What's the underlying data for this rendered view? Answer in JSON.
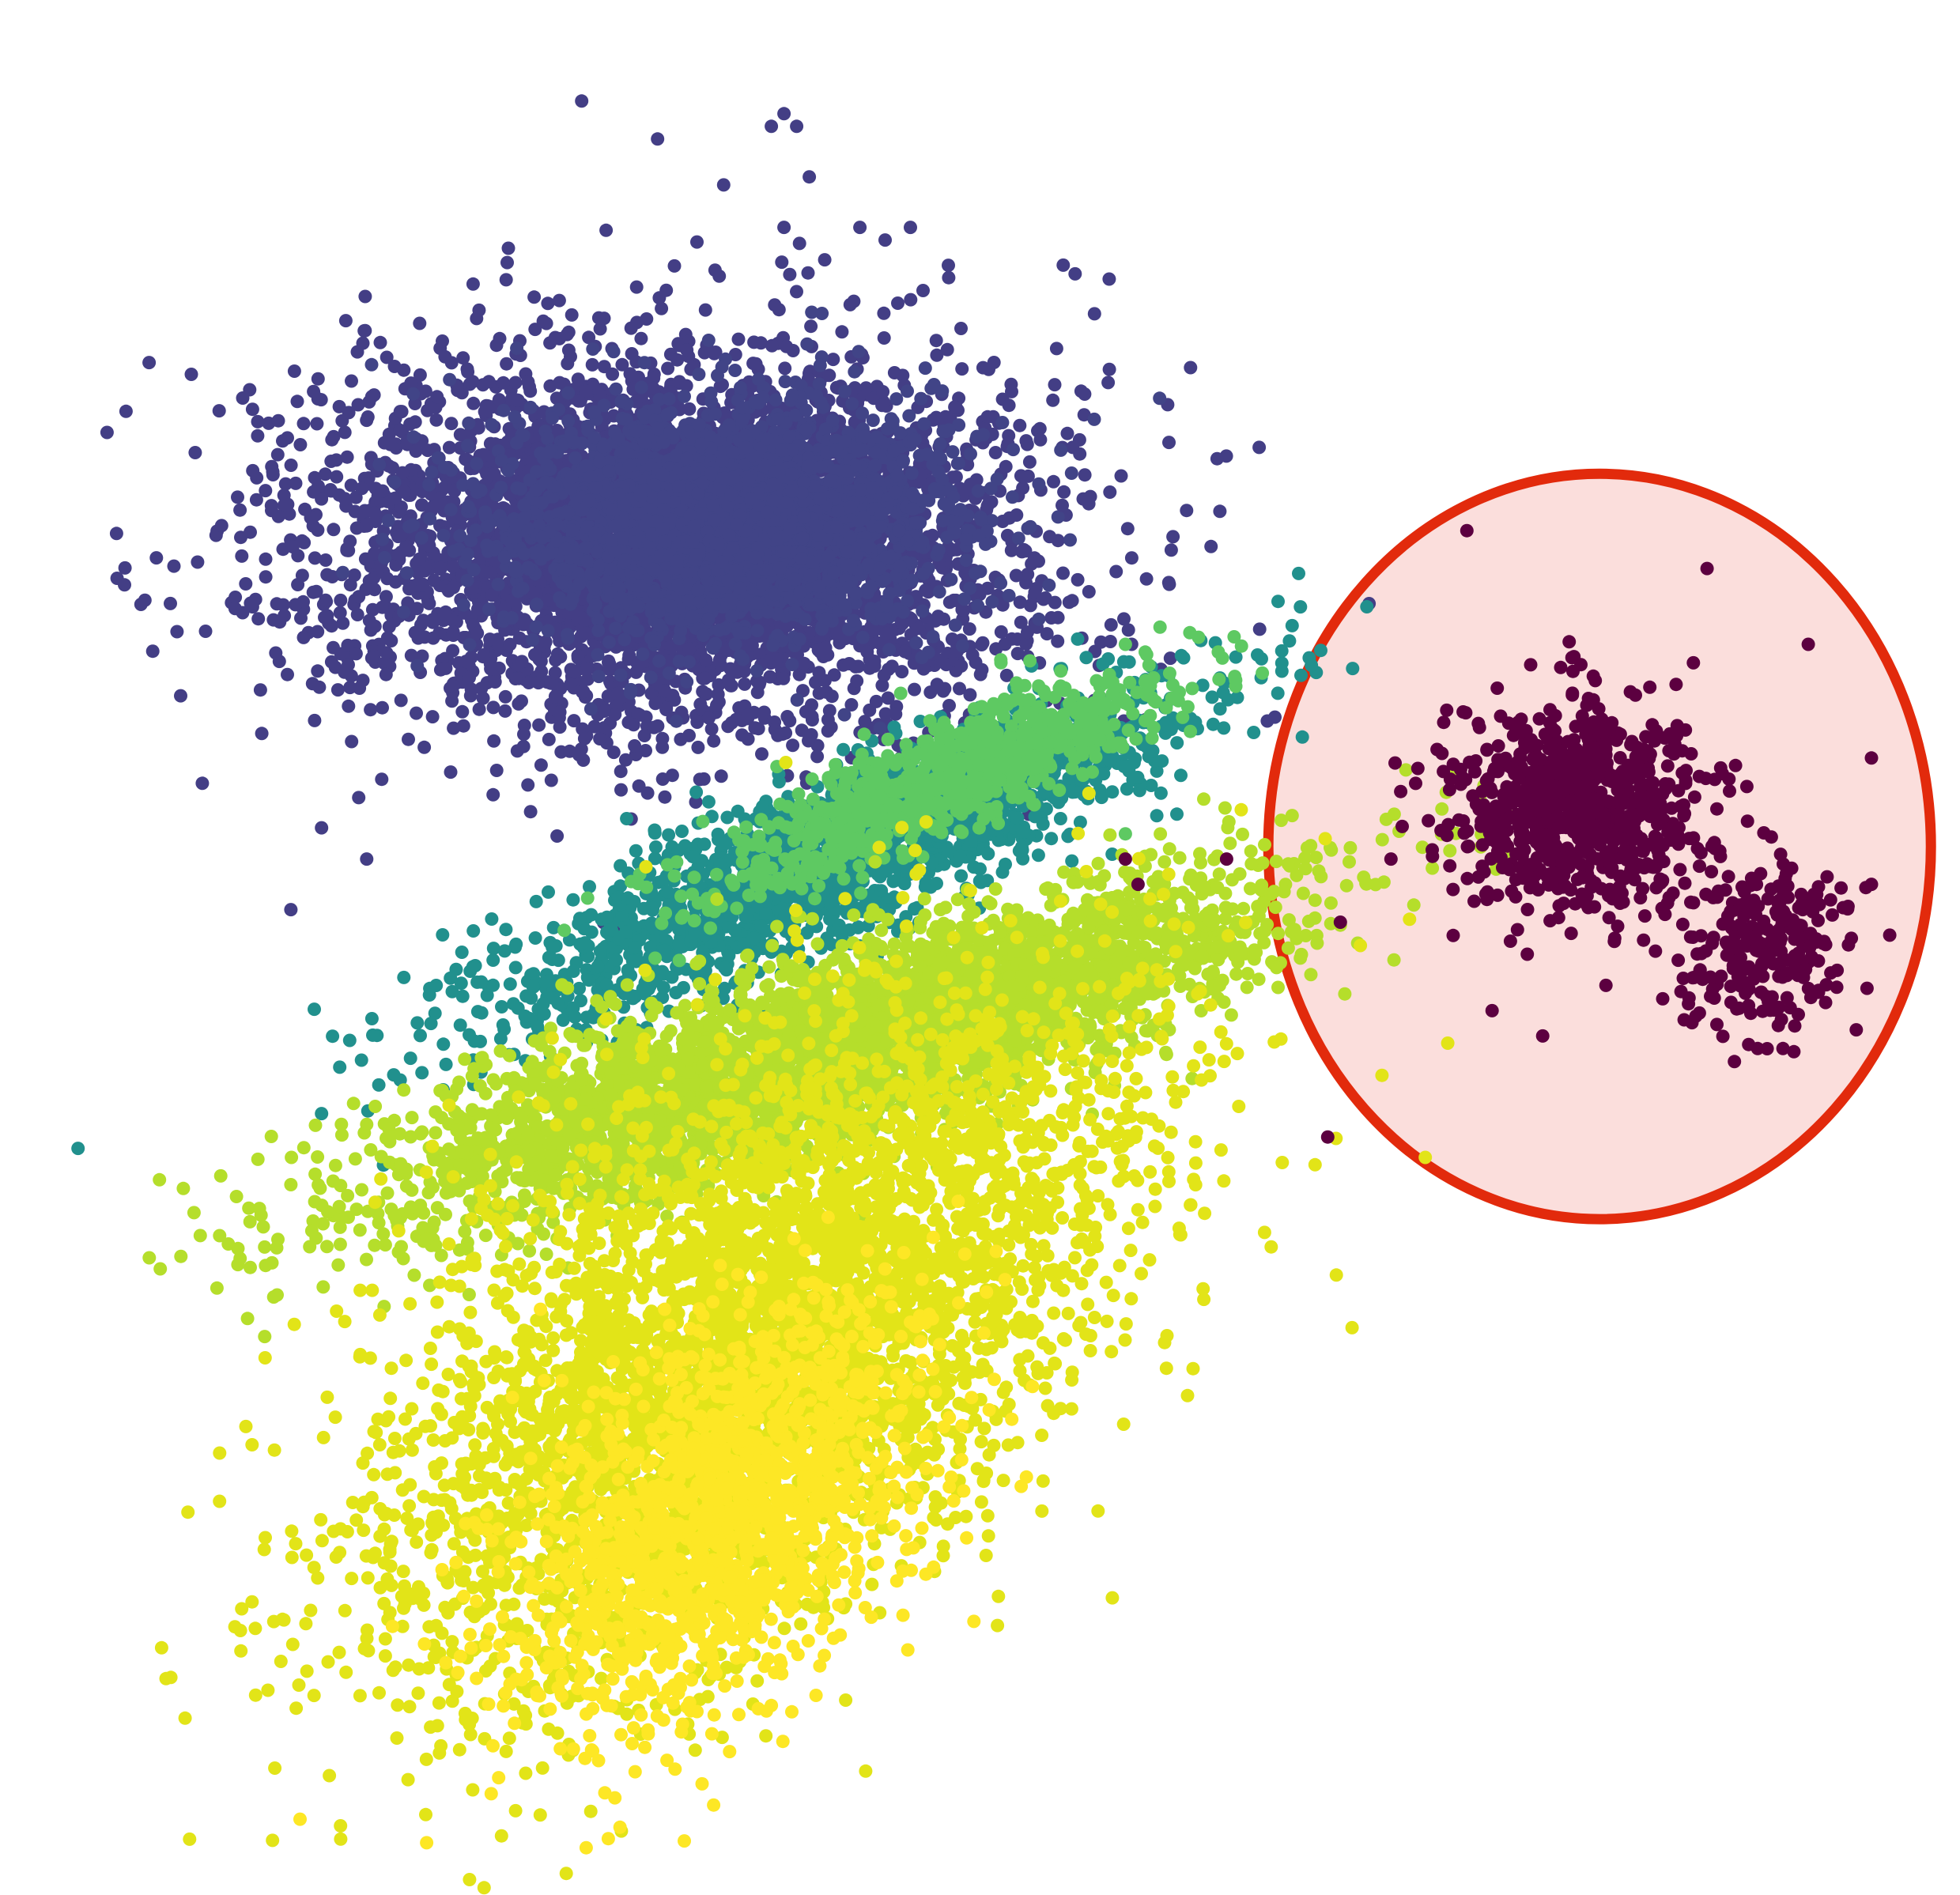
{
  "chart_data": {
    "type": "scatter",
    "title": "",
    "xlabel": "",
    "ylabel": "",
    "xlim": [
      0,
      1.55
    ],
    "ylim": [
      0,
      1.5
    ],
    "axes_visible": false,
    "grid": false,
    "legend": "none",
    "colormap": "viridis",
    "highlight": {
      "shape": "ellipse",
      "center": [
        1.265,
        0.83
      ],
      "radii": [
        0.262,
        0.295
      ],
      "stroke": "#e22a0c",
      "fill": "#fbdedc",
      "label": ""
    },
    "clusters": [
      {
        "id": "blue-blob",
        "color": "#433e85",
        "count": 4200,
        "center": [
          0.53,
          1.07
        ],
        "spread": [
          0.14,
          0.075
        ],
        "rotation": 0
      },
      {
        "id": "blue-core",
        "color": "#414487",
        "count": 2600,
        "center": [
          0.57,
          1.09
        ],
        "spread": [
          0.09,
          0.045
        ],
        "rotation": 0
      },
      {
        "id": "teal-band",
        "color": "#21908d",
        "count": 1800,
        "center": [
          0.66,
          0.82
        ],
        "spread": [
          0.15,
          0.03
        ],
        "rotation": 24
      },
      {
        "id": "green-band",
        "color": "#5ec962",
        "count": 900,
        "center": [
          0.74,
          0.88
        ],
        "spread": [
          0.1,
          0.02
        ],
        "rotation": 24
      },
      {
        "id": "lime-band",
        "color": "#b5de2b",
        "count": 4200,
        "center": [
          0.66,
          0.67
        ],
        "spread": [
          0.18,
          0.035
        ],
        "rotation": 18
      },
      {
        "id": "yellow-fan",
        "color": "#e2e418",
        "count": 4500,
        "center": [
          0.6,
          0.44
        ],
        "spread": [
          0.18,
          0.09
        ],
        "rotation": 40
      },
      {
        "id": "bright-yellow",
        "color": "#fde725",
        "count": 1600,
        "center": [
          0.57,
          0.3
        ],
        "spread": [
          0.1,
          0.06
        ],
        "rotation": 45
      },
      {
        "id": "maroon-cluster-a",
        "color": "#5c0040",
        "count": 850,
        "center": [
          1.25,
          0.86
        ],
        "spread": [
          0.05,
          0.04
        ],
        "rotation": 0
      },
      {
        "id": "maroon-cluster-b",
        "color": "#5c0040",
        "count": 250,
        "center": [
          1.4,
          0.75
        ],
        "spread": [
          0.03,
          0.035
        ],
        "rotation": -30
      }
    ],
    "outliers": [
      {
        "x": 0.46,
        "y": 1.42,
        "color": "#433e85"
      },
      {
        "x": 0.52,
        "y": 1.39,
        "color": "#433e85"
      },
      {
        "x": 0.61,
        "y": 1.4,
        "color": "#433e85"
      },
      {
        "x": 0.62,
        "y": 1.41,
        "color": "#433e85"
      },
      {
        "x": 0.63,
        "y": 1.4,
        "color": "#433e85"
      },
      {
        "x": 0.64,
        "y": 1.36,
        "color": "#433e85"
      },
      {
        "x": 0.62,
        "y": 1.32,
        "color": "#433e85"
      },
      {
        "x": 0.68,
        "y": 1.32,
        "color": "#433e85"
      },
      {
        "x": 0.7,
        "y": 1.31,
        "color": "#433e85"
      },
      {
        "x": 0.72,
        "y": 1.32,
        "color": "#433e85"
      },
      {
        "x": 0.75,
        "y": 1.29,
        "color": "#433e85"
      },
      {
        "x": 0.73,
        "y": 1.27,
        "color": "#433e85"
      },
      {
        "x": 0.71,
        "y": 1.26,
        "color": "#433e85"
      },
      {
        "x": 0.76,
        "y": 1.24,
        "color": "#433e85"
      },
      {
        "x": 0.8,
        "y": 1.19,
        "color": "#433e85"
      },
      {
        "x": 0.84,
        "y": 1.1,
        "color": "#433e85"
      },
      {
        "x": 0.14,
        "y": 1.0,
        "color": "#433e85"
      },
      {
        "x": 0.16,
        "y": 0.88,
        "color": "#433e85"
      },
      {
        "x": 0.23,
        "y": 0.78,
        "color": "#433e85"
      },
      {
        "x": 0.29,
        "y": 0.82,
        "color": "#433e85"
      },
      {
        "x": 0.35,
        "y": 0.76,
        "color": "#21908d"
      },
      {
        "x": 0.39,
        "y": 0.74,
        "color": "#21908d"
      },
      {
        "x": 0.42,
        "y": 0.71,
        "color": "#21908d"
      },
      {
        "x": 0.89,
        "y": 0.84,
        "color": "#5ec962"
      },
      {
        "x": 0.89,
        "y": 0.99,
        "color": "#5ec962"
      },
      {
        "x": 0.88,
        "y": 0.96,
        "color": "#5ec962"
      },
      {
        "x": 0.27,
        "y": 0.61,
        "color": "#b5de2b"
      },
      {
        "x": 0.29,
        "y": 0.61,
        "color": "#b5de2b"
      },
      {
        "x": 0.25,
        "y": 0.52,
        "color": "#b5de2b"
      },
      {
        "x": 0.4,
        "y": 0.16,
        "color": "#fde725"
      },
      {
        "x": 0.48,
        "y": 0.15,
        "color": "#fde725"
      },
      {
        "x": 0.61,
        "y": 0.15,
        "color": "#fde725"
      },
      {
        "x": 0.89,
        "y": 0.82,
        "color": "#5c0040"
      },
      {
        "x": 0.9,
        "y": 0.8,
        "color": "#5c0040"
      },
      {
        "x": 0.97,
        "y": 0.82,
        "color": "#5c0040"
      },
      {
        "x": 1.05,
        "y": 0.6,
        "color": "#5c0040"
      },
      {
        "x": 1.16,
        "y": 1.08,
        "color": "#5c0040"
      },
      {
        "x": 1.1,
        "y": 0.82,
        "color": "#5c0040"
      },
      {
        "x": 1.06,
        "y": 0.77,
        "color": "#5c0040"
      },
      {
        "x": 1.35,
        "y": 1.05,
        "color": "#5c0040"
      },
      {
        "x": 1.43,
        "y": 0.99,
        "color": "#5c0040"
      },
      {
        "x": 1.48,
        "y": 0.9,
        "color": "#5c0040"
      },
      {
        "x": 1.48,
        "y": 0.8,
        "color": "#5c0040"
      },
      {
        "x": 1.18,
        "y": 0.7,
        "color": "#5c0040"
      },
      {
        "x": 1.22,
        "y": 0.68,
        "color": "#5c0040"
      },
      {
        "x": 1.27,
        "y": 0.72,
        "color": "#5c0040"
      },
      {
        "x": 1.39,
        "y": 0.67,
        "color": "#5c0040"
      },
      {
        "x": 1.41,
        "y": 0.67,
        "color": "#5c0040"
      }
    ]
  }
}
